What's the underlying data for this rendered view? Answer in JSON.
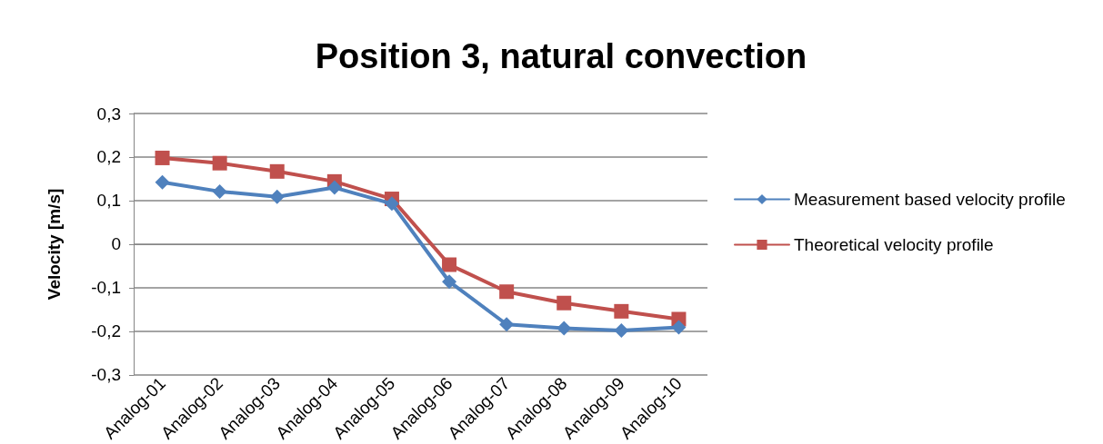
{
  "chart_data": {
    "type": "line",
    "title": "Position 3, natural convection",
    "ylabel": "Velocity [m/s]",
    "categories": [
      "Analog-01",
      "Analog-02",
      "Analog-03",
      "Analog-04",
      "Analog-05",
      "Analog-06",
      "Analog-07",
      "Analog-08",
      "Analog-09",
      "Analog-10"
    ],
    "series": [
      {
        "name": "Measurement based velocity profile",
        "color": "#4f81bd",
        "marker": "diamond",
        "values": [
          0.142,
          0.121,
          0.109,
          0.13,
          0.093,
          -0.086,
          -0.184,
          -0.193,
          -0.198,
          -0.191
        ]
      },
      {
        "name": "Theoretical velocity profile",
        "color": "#c0504d",
        "marker": "square",
        "values": [
          0.198,
          0.186,
          0.167,
          0.144,
          0.104,
          -0.047,
          -0.109,
          -0.135,
          -0.154,
          -0.172
        ]
      }
    ],
    "ylim": [
      -0.3,
      0.3
    ],
    "yticks": [
      {
        "value": -0.3,
        "label": "-0,3"
      },
      {
        "value": -0.2,
        "label": "-0,2"
      },
      {
        "value": -0.1,
        "label": "-0,1"
      },
      0,
      {
        "value": 0.1,
        "label": "0,1"
      },
      {
        "value": 0.2,
        "label": "0,2"
      },
      {
        "value": 0.3,
        "label": "0,3"
      }
    ],
    "grid": "y",
    "legend": "right",
    "line_style": "solid"
  }
}
